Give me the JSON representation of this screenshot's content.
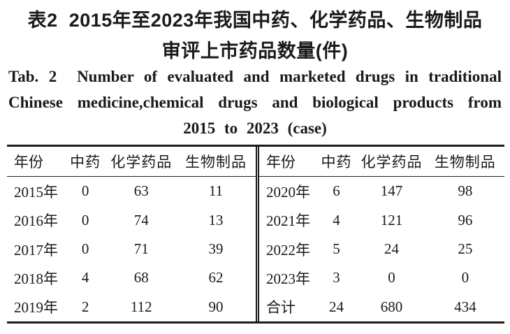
{
  "caption": {
    "zh_line1": "表2  2015年至2023年我国中药、化学药品、生物制品",
    "zh_line2": "审评上市药品数量(件)",
    "en_line1": "Tab. 2  Number of evaluated and marketed drugs in traditional",
    "en_line2": "Chinese medicine,chemical drugs and biological products from",
    "en_line3": "2015 to 2023 (case)"
  },
  "table": {
    "headers": [
      "年份",
      "中药",
      "化学药品",
      "生物制品"
    ],
    "left_rows": [
      [
        "2015年",
        "0",
        "63",
        "11"
      ],
      [
        "2016年",
        "0",
        "74",
        "13"
      ],
      [
        "2017年",
        "0",
        "71",
        "39"
      ],
      [
        "2018年",
        "4",
        "68",
        "62"
      ],
      [
        "2019年",
        "2",
        "112",
        "90"
      ]
    ],
    "right_rows": [
      [
        "2020年",
        "6",
        "147",
        "98"
      ],
      [
        "2021年",
        "4",
        "121",
        "96"
      ],
      [
        "2022年",
        "5",
        "24",
        "25"
      ],
      [
        "2023年",
        "3",
        "0",
        "0"
      ],
      [
        "合计",
        "24",
        "680",
        "434"
      ]
    ]
  },
  "chart_data": {
    "type": "table",
    "title": "表2 2015年至2023年我国中药、化学药品、生物制品审评上市药品数量(件) / Tab. 2 Number of evaluated and marketed drugs in traditional Chinese medicine,chemical drugs and biological products from 2015 to 2023 (case)",
    "columns": [
      "年份",
      "中药",
      "化学药品",
      "生物制品"
    ],
    "rows": [
      [
        "2015年",
        0,
        63,
        11
      ],
      [
        "2016年",
        0,
        74,
        13
      ],
      [
        "2017年",
        0,
        71,
        39
      ],
      [
        "2018年",
        4,
        68,
        62
      ],
      [
        "2019年",
        2,
        112,
        90
      ],
      [
        "2020年",
        6,
        147,
        98
      ],
      [
        "2021年",
        4,
        121,
        96
      ],
      [
        "2022年",
        5,
        24,
        25
      ],
      [
        "2023年",
        3,
        0,
        0
      ],
      [
        "合计",
        24,
        680,
        434
      ]
    ]
  }
}
